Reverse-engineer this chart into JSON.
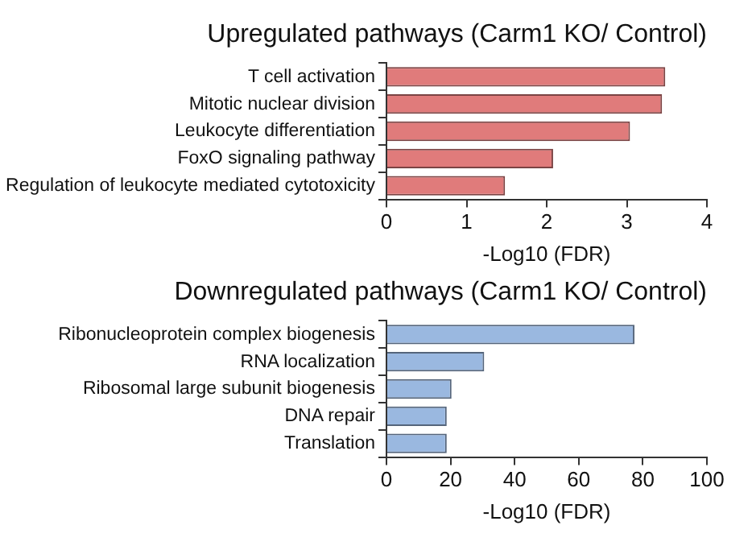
{
  "chart_data": [
    {
      "type": "bar",
      "orientation": "horizontal",
      "title": "Upregulated pathways (Carm1 KO/ Control)",
      "xlabel": "-Log10 (FDR)",
      "categories": [
        "T cell activation",
        "Mitotic nuclear division",
        "Leukocyte differentiation",
        "FoxO signaling pathway",
        "Regulation of leukocyte mediated cytotoxicity"
      ],
      "values": [
        3.48,
        3.44,
        3.04,
        2.08,
        1.48
      ],
      "color": "#e07b7b",
      "xlim": [
        0,
        4
      ],
      "xticks": [
        0,
        1,
        2,
        3,
        4
      ]
    },
    {
      "type": "bar",
      "orientation": "horizontal",
      "title": "Downregulated pathways (Carm1 KO/ Control)",
      "xlabel": "-Log10 (FDR)",
      "categories": [
        "Ribonucleoprotein complex biogenesis",
        "RNA localization",
        "Ribosomal large subunit biogenesis",
        "DNA repair",
        "Translation"
      ],
      "values": [
        77.4,
        30.5,
        20.3,
        18.8,
        18.8
      ],
      "color": "#9ab8e0",
      "xlim": [
        0,
        100
      ],
      "xticks": [
        0,
        20,
        40,
        60,
        80,
        100
      ]
    }
  ]
}
